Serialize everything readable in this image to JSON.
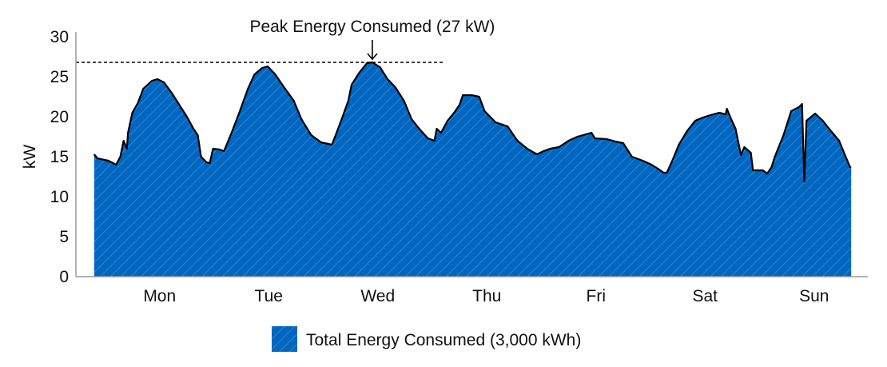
{
  "chart_data": {
    "type": "area",
    "title": "",
    "xlabel": "",
    "ylabel": "kW",
    "ylim": [
      0,
      30
    ],
    "yticks": [
      0,
      5,
      10,
      15,
      20,
      25,
      30
    ],
    "categories": [
      "Mon",
      "Tue",
      "Wed",
      "Thu",
      "Fri",
      "Sat",
      "Sun"
    ],
    "grid": false,
    "legend_position": "bottom",
    "colors": {
      "fill": "#0066bf",
      "hatch": "#4a9ae0",
      "line": "#000000",
      "axis": "#9a9a9a"
    },
    "annotation": {
      "label": "Peak Energy Consumed (27 kW)",
      "value": 26.8
    },
    "series": [
      {
        "name": "Total Energy Consumed (3,000 kWh)",
        "points": [
          [
            -0.1,
            15.3
          ],
          [
            -0.07,
            14.8
          ],
          [
            0.03,
            14.5
          ],
          [
            0.1,
            14.0
          ],
          [
            0.14,
            15.0
          ],
          [
            0.17,
            17.0
          ],
          [
            0.2,
            16.0
          ],
          [
            0.21,
            18.0
          ],
          [
            0.25,
            20.5
          ],
          [
            0.3,
            21.7
          ],
          [
            0.35,
            23.5
          ],
          [
            0.43,
            24.5
          ],
          [
            0.48,
            24.7
          ],
          [
            0.54,
            24.3
          ],
          [
            0.61,
            23.0
          ],
          [
            0.68,
            21.5
          ],
          [
            0.75,
            20.0
          ],
          [
            0.81,
            18.5
          ],
          [
            0.85,
            17.7
          ],
          [
            0.88,
            15.0
          ],
          [
            0.93,
            14.3
          ],
          [
            0.96,
            14.2
          ],
          [
            0.99,
            16.0
          ],
          [
            1.05,
            15.9
          ],
          [
            1.09,
            15.7
          ],
          [
            1.16,
            18.0
          ],
          [
            1.23,
            20.5
          ],
          [
            1.31,
            23.5
          ],
          [
            1.37,
            25.3
          ],
          [
            1.44,
            26.1
          ],
          [
            1.49,
            26.3
          ],
          [
            1.56,
            25.3
          ],
          [
            1.64,
            23.7
          ],
          [
            1.73,
            22.0
          ],
          [
            1.8,
            19.7
          ],
          [
            1.89,
            17.7
          ],
          [
            1.98,
            16.8
          ],
          [
            2.08,
            16.5
          ],
          [
            2.15,
            19.0
          ],
          [
            2.23,
            22.0
          ],
          [
            2.26,
            24.0
          ],
          [
            2.33,
            25.5
          ],
          [
            2.4,
            26.7
          ],
          [
            2.45,
            26.8
          ],
          [
            2.52,
            26.2
          ],
          [
            2.59,
            24.7
          ],
          [
            2.66,
            23.7
          ],
          [
            2.74,
            22.0
          ],
          [
            2.81,
            19.7
          ],
          [
            2.88,
            18.5
          ],
          [
            2.96,
            17.3
          ],
          [
            3.02,
            17.0
          ],
          [
            3.04,
            18.5
          ],
          [
            3.08,
            18.0
          ],
          [
            3.14,
            19.5
          ],
          [
            3.2,
            20.5
          ],
          [
            3.25,
            21.5
          ],
          [
            3.28,
            22.7
          ],
          [
            3.36,
            22.7
          ],
          [
            3.43,
            22.5
          ],
          [
            3.48,
            20.7
          ],
          [
            3.58,
            19.3
          ],
          [
            3.69,
            18.8
          ],
          [
            3.78,
            17.0
          ],
          [
            3.87,
            16.0
          ],
          [
            3.96,
            15.3
          ],
          [
            4.02,
            15.7
          ],
          [
            4.08,
            16.0
          ],
          [
            4.16,
            16.2
          ],
          [
            4.25,
            17.0
          ],
          [
            4.33,
            17.5
          ],
          [
            4.46,
            18.0
          ],
          [
            4.49,
            17.3
          ],
          [
            4.6,
            17.2
          ],
          [
            4.68,
            16.9
          ],
          [
            4.75,
            16.7
          ],
          [
            4.83,
            15.0
          ],
          [
            4.93,
            14.5
          ],
          [
            5.01,
            14.0
          ],
          [
            5.08,
            13.4
          ],
          [
            5.12,
            13.0
          ],
          [
            5.15,
            13.0
          ],
          [
            5.2,
            14.5
          ],
          [
            5.26,
            16.5
          ],
          [
            5.34,
            18.3
          ],
          [
            5.41,
            19.5
          ],
          [
            5.48,
            19.9
          ],
          [
            5.55,
            20.2
          ],
          [
            5.63,
            20.5
          ],
          [
            5.69,
            20.3
          ],
          [
            5.7,
            21.0
          ],
          [
            5.74,
            19.7
          ],
          [
            5.78,
            18.5
          ],
          [
            5.81,
            16.5
          ],
          [
            5.83,
            15.2
          ],
          [
            5.86,
            16.2
          ],
          [
            5.92,
            15.5
          ],
          [
            5.94,
            13.3
          ],
          [
            6.03,
            13.3
          ],
          [
            6.07,
            12.9
          ],
          [
            6.11,
            13.7
          ],
          [
            6.14,
            15.0
          ],
          [
            6.22,
            17.7
          ],
          [
            6.29,
            20.7
          ],
          [
            6.36,
            21.2
          ],
          [
            6.39,
            21.6
          ],
          [
            6.41,
            11.9
          ],
          [
            6.43,
            19.5
          ],
          [
            6.51,
            20.4
          ],
          [
            6.58,
            19.5
          ],
          [
            6.65,
            18.3
          ],
          [
            6.73,
            17.0
          ],
          [
            6.79,
            15.0
          ],
          [
            6.83,
            13.7
          ],
          [
            6.84,
            13.7
          ]
        ]
      }
    ]
  }
}
